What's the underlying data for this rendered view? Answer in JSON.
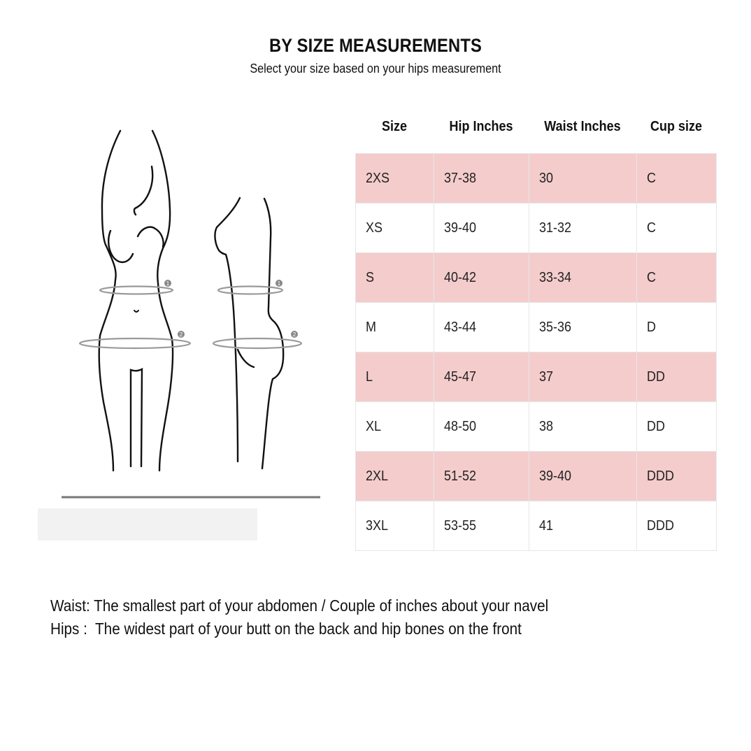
{
  "header": {
    "title": "BY SIZE MEASUREMENTS",
    "subtitle": "Select your size based on your hips measurement"
  },
  "figure": {
    "markers": [
      "1",
      "2"
    ]
  },
  "table": {
    "columns": [
      "Size",
      "Hip Inches",
      "Waist Inches",
      "Cup size"
    ],
    "rows": [
      [
        "2XS",
        "37-38",
        "30",
        "C"
      ],
      [
        "XS",
        "39-40",
        "31-32",
        "C"
      ],
      [
        "S",
        "40-42",
        "33-34",
        "C"
      ],
      [
        "M",
        "43-44",
        "35-36",
        "D"
      ],
      [
        "L",
        "45-47",
        "37",
        "DD"
      ],
      [
        "XL",
        "48-50",
        "38",
        "DD"
      ],
      [
        "2XL",
        "51-52",
        "39-40",
        "DDD"
      ],
      [
        "3XL",
        "53-55",
        "41",
        "DDD"
      ]
    ],
    "stripe_color": "#f4cccc"
  },
  "notes": {
    "waist": "Waist: The smallest part of your abdomen / Couple of inches about your navel",
    "hips": "Hips :  The widest part of your butt on the back and hip bones on the front"
  }
}
